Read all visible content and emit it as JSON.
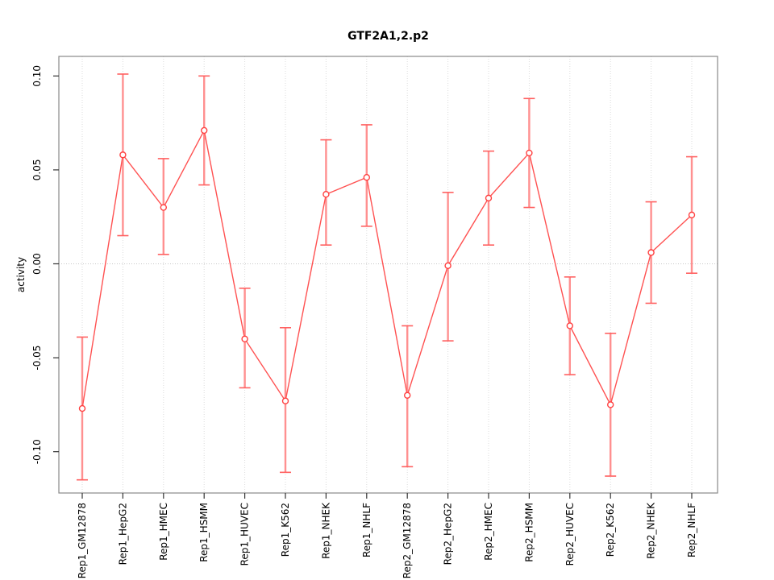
{
  "chart_data": {
    "type": "line",
    "title": "GTF2A1,2.p2",
    "xlabel": "",
    "ylabel": "activity",
    "ylim": [
      -0.122,
      0.11
    ],
    "y_ticks": [
      0.1,
      0.05,
      0.0,
      -0.05,
      -0.1
    ],
    "y_tick_labels": [
      "0.10",
      "0.05",
      "0.00",
      "-0.05",
      "-0.10"
    ],
    "grid": "vertical dotted gridline per category plus dotted horizontal line at 0",
    "legend": "none",
    "marker": "open-circle",
    "error_bars": true,
    "categories": [
      "Rep1_GM12878",
      "Rep1_HepG2",
      "Rep1_HMEC",
      "Rep1_HSMM",
      "Rep1_HUVEC",
      "Rep1_K562",
      "Rep1_NHEK",
      "Rep1_NHLF",
      "Rep2_GM12878",
      "Rep2_HepG2",
      "Rep2_HMEC",
      "Rep2_HSMM",
      "Rep2_HUVEC",
      "Rep2_K562",
      "Rep2_NHEK",
      "Rep2_NHLF"
    ],
    "series": [
      {
        "name": "activity",
        "values": [
          -0.077,
          0.058,
          0.03,
          0.071,
          -0.04,
          -0.073,
          0.037,
          0.046,
          -0.07,
          -0.001,
          0.035,
          0.059,
          -0.033,
          -0.075,
          0.006,
          0.026
        ],
        "ci_low": [
          -0.115,
          0.015,
          0.005,
          0.042,
          -0.066,
          -0.111,
          0.01,
          0.02,
          -0.108,
          -0.041,
          0.01,
          0.03,
          -0.059,
          -0.113,
          -0.021,
          -0.005
        ],
        "ci_high": [
          -0.039,
          0.101,
          0.056,
          0.1,
          -0.013,
          -0.034,
          0.066,
          0.074,
          -0.033,
          0.038,
          0.06,
          0.088,
          -0.007,
          -0.037,
          0.033,
          0.057
        ]
      }
    ],
    "colors": {
      "line": "#FF5252",
      "marker_stroke": "#FF4040",
      "error_bar": "#FF9090",
      "error_cap": "#FF6060",
      "grid": "#DBDBDB",
      "zero_line": "#C8C8C8",
      "box": "#888888",
      "tick": "#333333",
      "text": "#000000"
    }
  }
}
